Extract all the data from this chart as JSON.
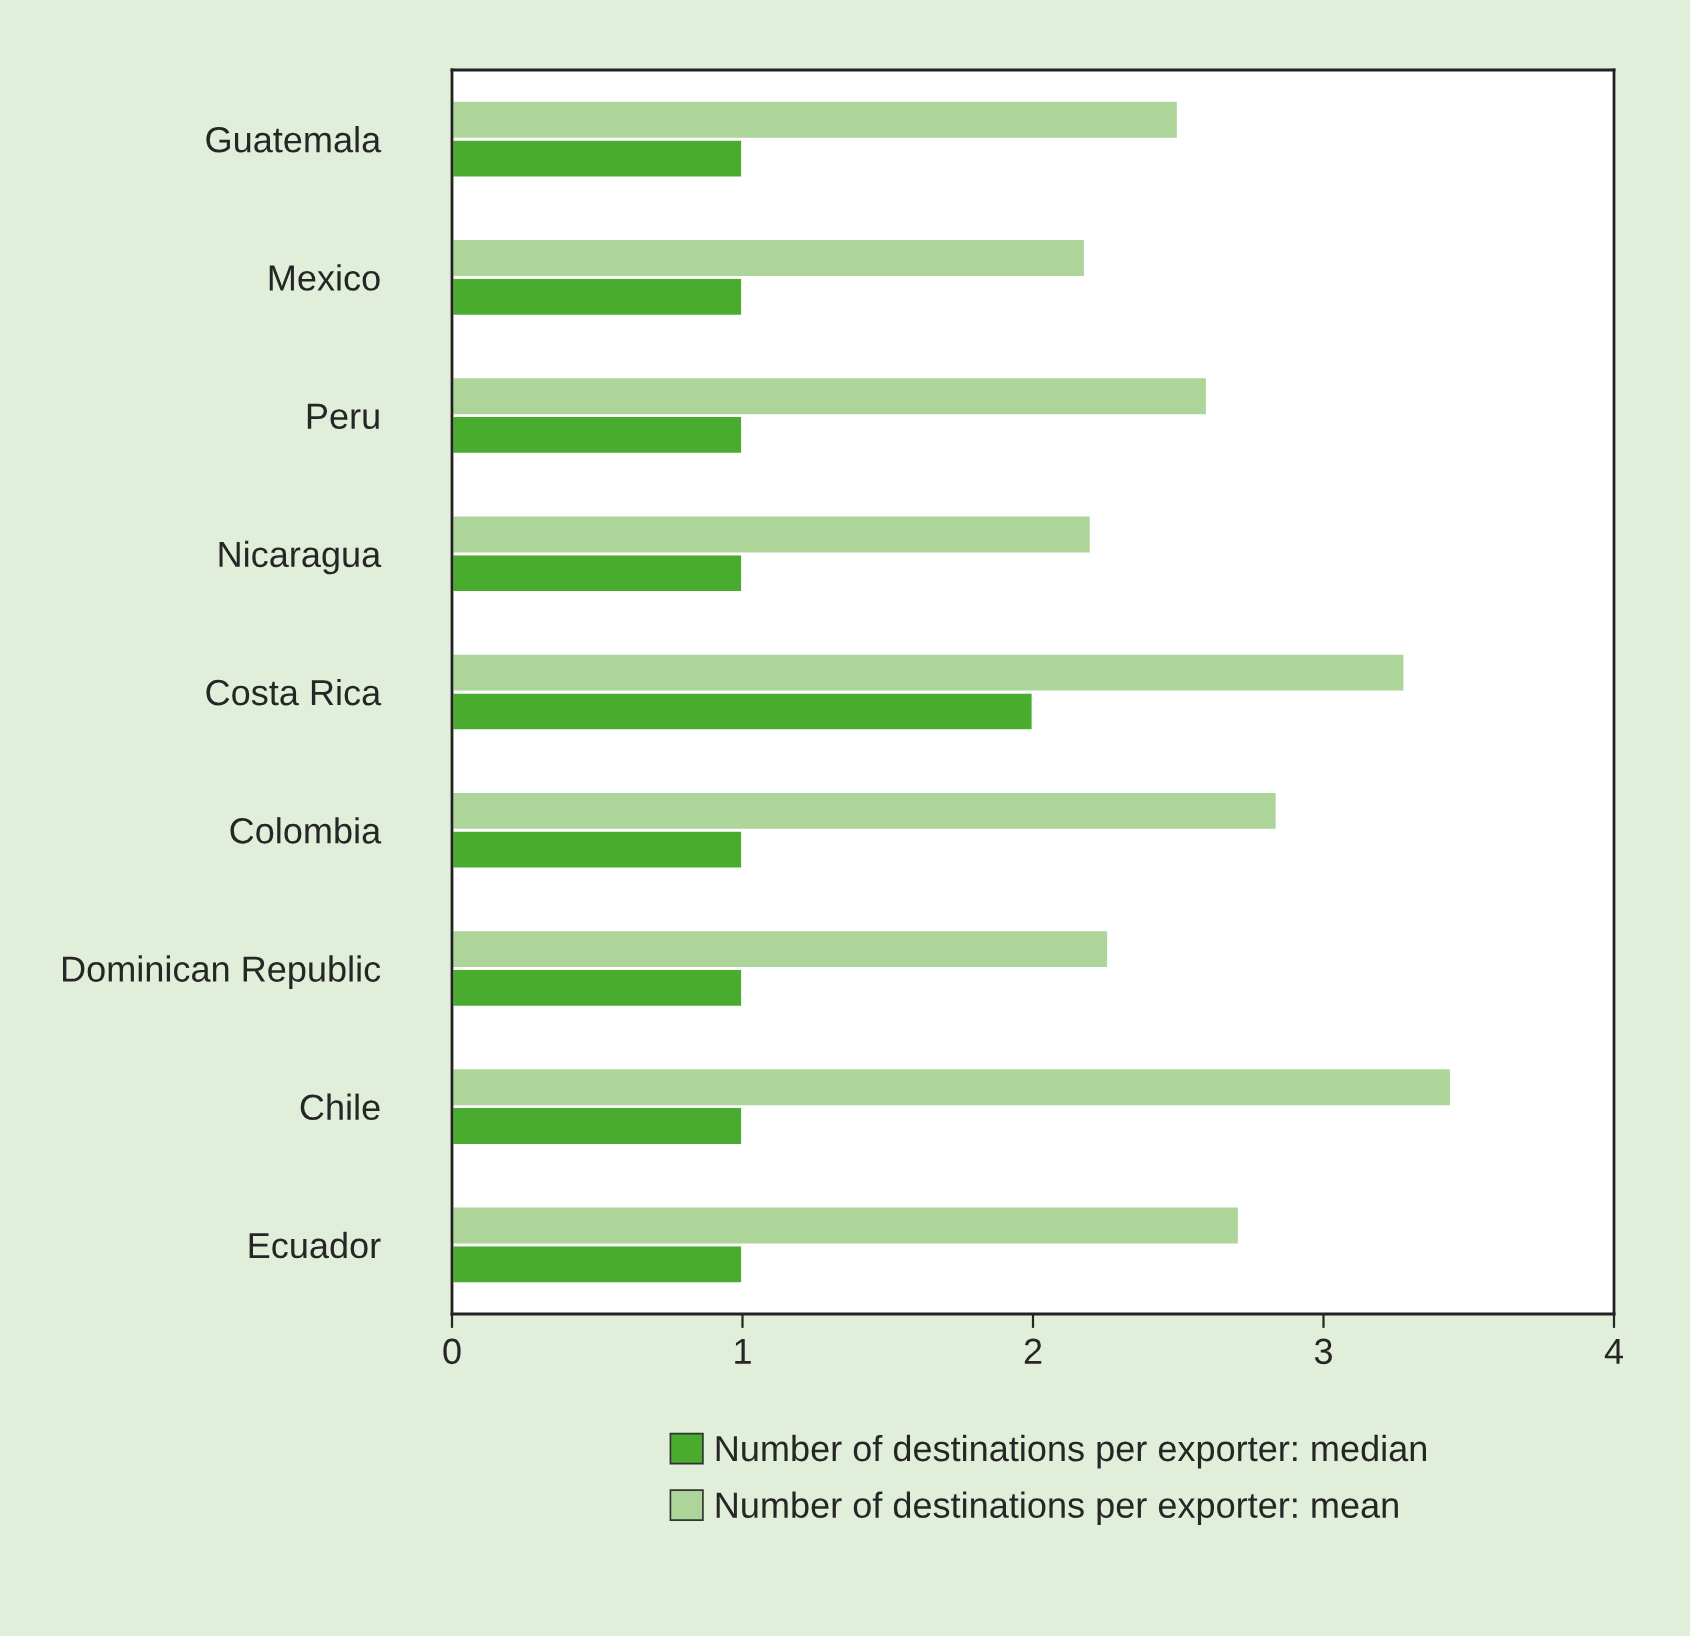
{
  "chart_data": {
    "type": "bar",
    "orientation": "horizontal",
    "categories": [
      "Guatemala",
      "Mexico",
      "Peru",
      "Nicaragua",
      "Costa Rica",
      "Colombia",
      "Dominican Republic",
      "Chile",
      "Ecuador"
    ],
    "series": [
      {
        "name": "Number of destinations per exporter: median",
        "color": "#4aac2f",
        "values": [
          1,
          1,
          1,
          1,
          2,
          1,
          1,
          1,
          1
        ]
      },
      {
        "name": "Number of destinations per exporter: mean",
        "color": "#add59a",
        "values": [
          2.5,
          2.18,
          2.6,
          2.2,
          3.28,
          2.84,
          2.26,
          3.44,
          2.71
        ]
      }
    ],
    "xlim": [
      0,
      4
    ],
    "xticks": [
      0,
      1,
      2,
      3,
      4
    ],
    "grid": false,
    "legend": "bottom"
  }
}
